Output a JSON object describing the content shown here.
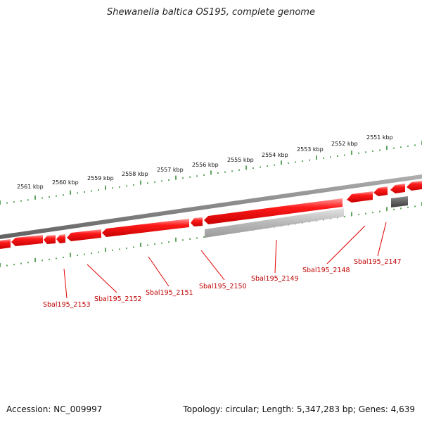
{
  "title": "Shewanella baltica OS195, complete genome",
  "footer": {
    "accession": "Accession: NC_009997",
    "info": "Topology: circular; Length: 5,347,283 bp; Genes: 4,639"
  },
  "colors": {
    "gene_forward": "#e00000",
    "gene_reverse_grey": "#a8a8a8",
    "gene_dark": "#555555",
    "backbone": "#808080",
    "ruler_dots": "#2a8a2a",
    "label_line": "#e00000"
  },
  "ruler_labels": [
    "2561 kbp",
    "2560 kbp",
    "2559 kbp",
    "2558 kbp",
    "2557 kbp",
    "2556 kbp",
    "2555 kbp",
    "2554 kbp",
    "2553 kbp",
    "2552 kbp",
    "2551 kbp"
  ],
  "gene_labels": [
    "Sbal195_2153",
    "Sbal195_2152",
    "Sbal195_2151",
    "Sbal195_2150",
    "Sbal195_2149",
    "Sbal195_2148",
    "Sbal195_2147"
  ]
}
